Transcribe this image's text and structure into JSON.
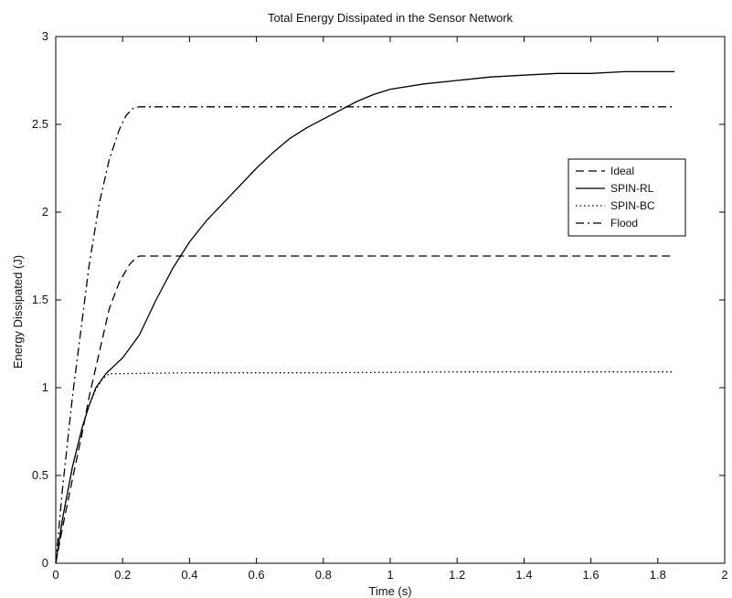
{
  "chart_data": {
    "type": "line",
    "title": "Total Energy Dissipated in the Sensor Network",
    "xlabel": "Time (s)",
    "ylabel": "Energy Dissipated (J)",
    "xlim": [
      0,
      2
    ],
    "ylim": [
      0,
      3
    ],
    "xticks": [
      0,
      0.2,
      0.4,
      0.6,
      0.8,
      1,
      1.2,
      1.4,
      1.6,
      1.8,
      2
    ],
    "yticks": [
      0,
      0.5,
      1,
      1.5,
      2,
      2.5,
      3
    ],
    "xtick_labels": [
      "0",
      "0.2",
      "0.4",
      "0.6",
      "0.8",
      "1",
      "1.2",
      "1.4",
      "1.6",
      "1.8",
      "2"
    ],
    "ytick_labels": [
      "0",
      "0.5",
      "1",
      "1.5",
      "2",
      "2.5",
      "3"
    ],
    "grid": false,
    "legend_position": "right",
    "series": [
      {
        "name": "Ideal",
        "style": "dashed",
        "color": "#000000",
        "x": [
          0,
          0.02,
          0.05,
          0.08,
          0.1,
          0.13,
          0.16,
          0.19,
          0.22,
          0.24,
          0.25,
          0.27,
          0.4,
          0.8,
          1.2,
          1.6,
          1.85
        ],
        "y": [
          0,
          0.2,
          0.48,
          0.75,
          0.95,
          1.2,
          1.45,
          1.6,
          1.7,
          1.74,
          1.75,
          1.75,
          1.75,
          1.75,
          1.75,
          1.75,
          1.75
        ]
      },
      {
        "name": "SPIN-RL",
        "style": "solid",
        "color": "#000000",
        "x": [
          0,
          0.02,
          0.05,
          0.08,
          0.1,
          0.12,
          0.15,
          0.2,
          0.25,
          0.3,
          0.35,
          0.4,
          0.45,
          0.5,
          0.55,
          0.6,
          0.65,
          0.7,
          0.75,
          0.8,
          0.85,
          0.9,
          0.95,
          1.0,
          1.1,
          1.2,
          1.3,
          1.4,
          1.5,
          1.6,
          1.7,
          1.85
        ],
        "y": [
          0,
          0.25,
          0.55,
          0.78,
          0.9,
          1.0,
          1.08,
          1.17,
          1.3,
          1.5,
          1.68,
          1.83,
          1.95,
          2.05,
          2.15,
          2.25,
          2.34,
          2.42,
          2.48,
          2.53,
          2.58,
          2.63,
          2.67,
          2.7,
          2.73,
          2.75,
          2.77,
          2.78,
          2.79,
          2.79,
          2.8,
          2.8
        ]
      },
      {
        "name": "SPIN-BC",
        "style": "dotted",
        "color": "#000000",
        "x": [
          0,
          0.02,
          0.05,
          0.08,
          0.1,
          0.12,
          0.14,
          0.16,
          0.2,
          0.4,
          0.8,
          1.2,
          1.6,
          1.85
        ],
        "y": [
          0,
          0.25,
          0.55,
          0.78,
          0.9,
          0.99,
          1.05,
          1.08,
          1.08,
          1.085,
          1.085,
          1.09,
          1.09,
          1.09
        ]
      },
      {
        "name": "Flood",
        "style": "dashdot",
        "color": "#000000",
        "x": [
          0,
          0.02,
          0.05,
          0.08,
          0.1,
          0.13,
          0.16,
          0.19,
          0.21,
          0.23,
          0.25,
          0.27,
          0.4,
          0.8,
          1.2,
          1.6,
          1.85
        ],
        "y": [
          0,
          0.42,
          0.95,
          1.4,
          1.7,
          2.05,
          2.3,
          2.47,
          2.55,
          2.59,
          2.6,
          2.6,
          2.6,
          2.6,
          2.6,
          2.6,
          2.6
        ]
      }
    ]
  }
}
